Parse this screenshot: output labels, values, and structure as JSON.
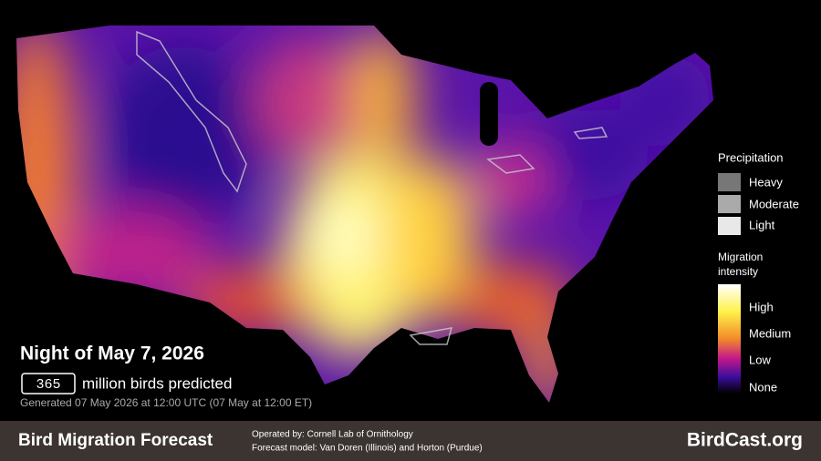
{
  "header": {
    "night": "Night of May 7, 2026",
    "birds_predicted": 365,
    "birds_label": "million birds predicted",
    "generated": "Generated 07 May 2026 at 12:00 UTC (07 May at 12:00 ET)"
  },
  "legend": {
    "precipitation_title": "Precipitation",
    "precipitation": [
      "Heavy",
      "Moderate",
      "Light"
    ],
    "intensity_title": [
      "Migration",
      "intensity"
    ],
    "intensity": [
      "High",
      "Medium",
      "Low",
      "None"
    ]
  },
  "footer": {
    "title": "Bird Migration Forecast",
    "operated": "Operated by: Cornell Lab of Ornithology",
    "model": "Forecast model: Van Doren (Illinois) and Horton (Purdue)",
    "site": "BirdCast.org"
  }
}
